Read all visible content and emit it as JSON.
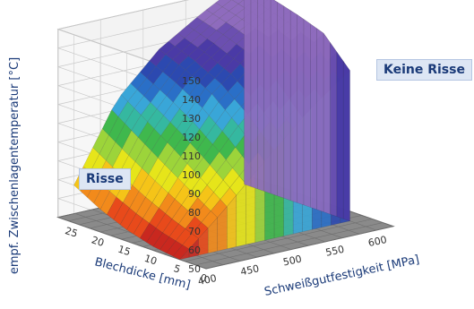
{
  "chart_data": {
    "type": "surface",
    "zlabel": "empf. Zwischenlagentemperatur [°C]",
    "xlabel": "Schweißgutfestigkeit [MPa]",
    "ylabel": "Blechdicke [mm]",
    "z_ticks": [
      50,
      60,
      70,
      80,
      90,
      100,
      110,
      120,
      130,
      140,
      150
    ],
    "x_ticks": [
      400,
      450,
      500,
      550,
      600
    ],
    "y_ticks": [
      0,
      5,
      10,
      15,
      20,
      25
    ],
    "zlim": [
      50,
      150
    ],
    "xlim": [
      400,
      620
    ],
    "ylim": [
      0,
      28
    ],
    "annotations": [
      "Keine Risse",
      "Risse"
    ],
    "colorscale": [
      "#c9281f",
      "#e84a1b",
      "#f28a1b",
      "#f5c418",
      "#e6e51a",
      "#9cd43a",
      "#3fb84d",
      "#35b8a0",
      "#39a6d8",
      "#2a6fc7",
      "#2c49b0",
      "#4a3aa6",
      "#6b4fb0",
      "#8e6bbd"
    ],
    "surface_grid": {
      "x": [
        400,
        450,
        500,
        550,
        600
      ],
      "y": [
        5,
        10,
        15,
        20,
        25
      ],
      "z": [
        [
          50,
          70,
          92,
          113,
          130
        ],
        [
          52,
          80,
          106,
          128,
          145
        ],
        [
          56,
          90,
          118,
          137,
          150
        ],
        [
          62,
          100,
          126,
          142,
          154
        ],
        [
          70,
          110,
          132,
          146,
          158
        ]
      ]
    }
  },
  "labels": {
    "keine_risse": "Keine Risse",
    "risse": "Risse"
  }
}
